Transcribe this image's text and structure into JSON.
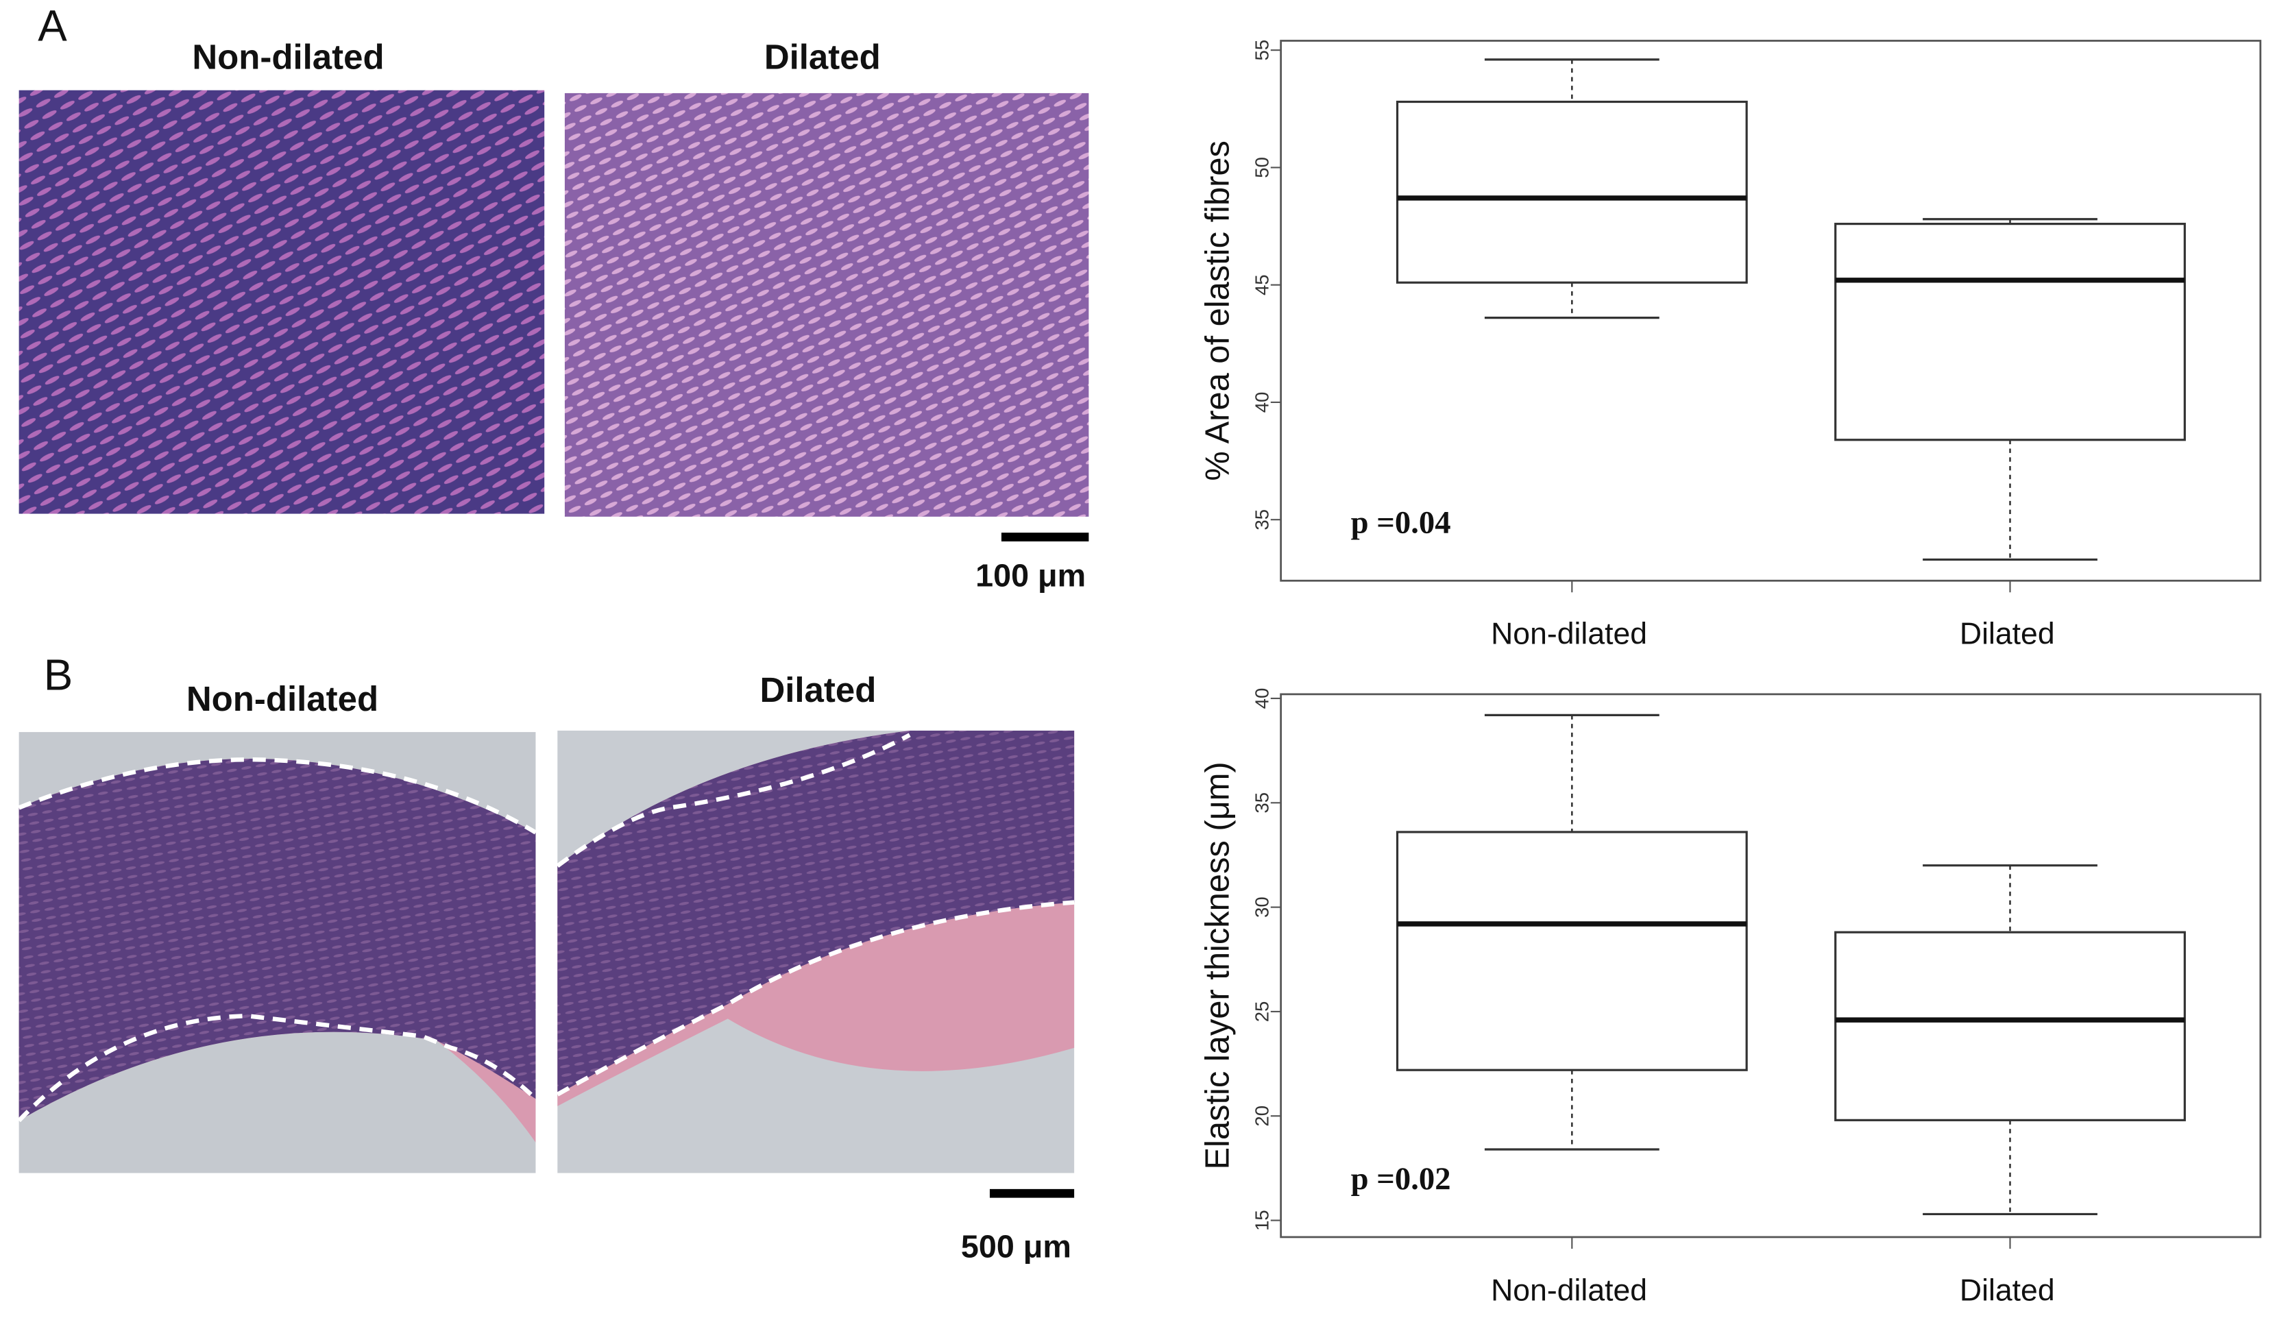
{
  "panels": {
    "A": {
      "label": "A",
      "left_title": "Non-dilated",
      "right_title": "Dilated",
      "scale_bar": "100 μm"
    },
    "B": {
      "label": "B",
      "left_title": "Non-dilated",
      "right_title": "Dilated",
      "scale_bar": "500 μm"
    }
  },
  "chart_data": [
    {
      "type": "box",
      "y_label": "% Area of elastic fibres",
      "annotation": "p =0.04",
      "categories": [
        "Non-dilated",
        "Dilated"
      ],
      "boxes": [
        {
          "whishi": 54.6,
          "q3": 52.8,
          "med": 48.7,
          "q1": 45.1,
          "whislo": 43.6
        },
        {
          "whishi": 47.8,
          "q3": 47.6,
          "med": 45.2,
          "q1": 38.4,
          "whislo": 33.3
        }
      ],
      "ylim": [
        32.4,
        55.4
      ],
      "yticks": [
        35,
        40,
        45,
        50,
        55
      ],
      "color": "#ffffff"
    },
    {
      "type": "box",
      "y_label": "Elastic layer thickness (μm)",
      "annotation": "p =0.02",
      "categories": [
        "Non-dilated",
        "Dilated"
      ],
      "boxes": [
        {
          "whishi": 39.2,
          "q3": 33.6,
          "med": 29.2,
          "q1": 22.2,
          "whislo": 18.4
        },
        {
          "whishi": 32.0,
          "q3": 28.8,
          "med": 24.6,
          "q1": 19.8,
          "whislo": 15.3
        }
      ],
      "ylim": [
        14.2,
        40.2
      ],
      "yticks": [
        15,
        20,
        25,
        30,
        35,
        40
      ],
      "color": "#ffffff"
    }
  ]
}
